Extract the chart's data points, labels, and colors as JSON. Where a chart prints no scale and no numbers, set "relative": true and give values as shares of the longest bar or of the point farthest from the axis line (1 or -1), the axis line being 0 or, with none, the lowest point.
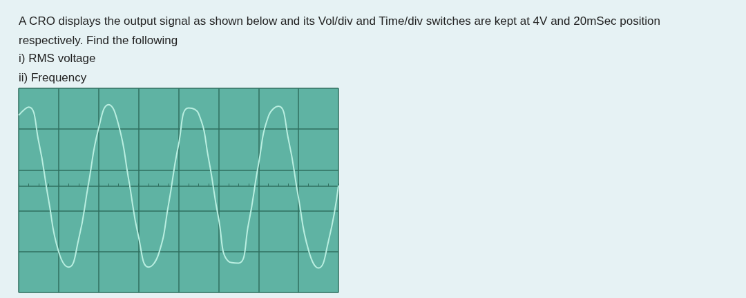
{
  "chart_data": {
    "type": "line",
    "title": "A CRO displays the output signal as shown below and its Vol/div and Time/div switches are kept at 4V and 20mSec position respectively. Find the following",
    "annotations": [
      "i) RMS voltage",
      "ii) Frequency"
    ],
    "relative": true,
    "grid": true,
    "ref_lines": [
      {
        "axis": "y",
        "value": 0,
        "color": "#2f6f5f"
      }
    ],
    "categories": [
      null,
      null,
      null,
      null,
      null,
      null,
      null,
      null,
      null,
      null,
      null,
      null,
      null,
      null,
      null,
      null,
      null,
      null,
      null,
      null,
      null,
      null,
      null,
      null,
      null,
      null,
      null,
      null,
      null,
      null,
      null,
      null,
      null
    ],
    "series": [
      {
        "color": "#b9eee0",
        "values": [
          0.87,
          0.97,
          0.55,
          -0.17,
          -0.8,
          -0.99,
          -0.65,
          0.04,
          0.71,
          1.0,
          0.75,
          0.09,
          -0.62,
          -0.99,
          -0.83,
          -0.22,
          0.51,
          0.96,
          0.89,
          0.34,
          -0.39,
          -0.92,
          -0.94,
          -0.46,
          0.27,
          0.86,
          0.98,
          0.57,
          -0.14,
          -0.78,
          -1.0,
          -0.67,
          0.01
        ]
      }
    ]
  }
}
